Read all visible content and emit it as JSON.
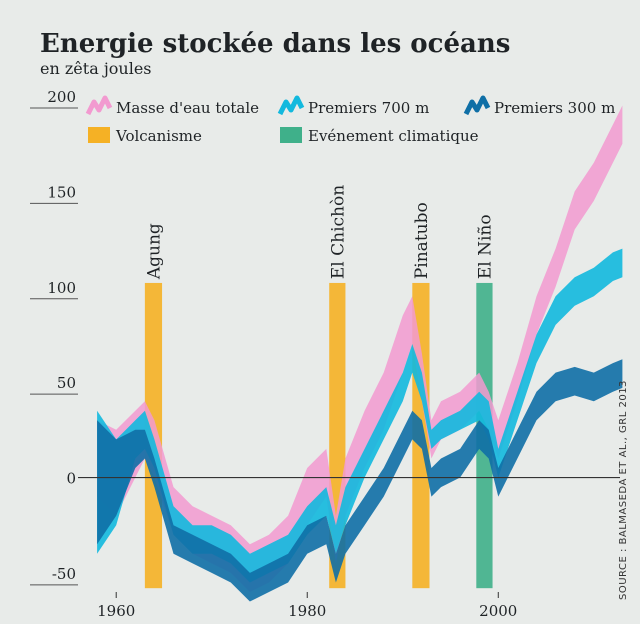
{
  "chart_data": {
    "type": "area",
    "title": "Energie stockée dans les océans",
    "subtitle": "en zêta joules",
    "source": "SOURCE : BALMASEDA ET AL., GRL 2013",
    "xlim": [
      1956,
      2014
    ],
    "ylim": [
      -60,
      200
    ],
    "x_ticks": [
      1960,
      1980,
      2000
    ],
    "y_ticks": [
      -50,
      0,
      50,
      100,
      150,
      200
    ],
    "grid": "horizontal",
    "legend_position": "top",
    "series": [
      {
        "name": "Masse d'eau totale",
        "color": "#f29ad0",
        "x": [
          1958,
          1960,
          1962,
          1963,
          1964,
          1966,
          1968,
          1970,
          1972,
          1974,
          1976,
          1978,
          1980,
          1982,
          1983,
          1984,
          1986,
          1988,
          1990,
          1991,
          1992,
          1993,
          1994,
          1996,
          1998,
          1999,
          2000,
          2002,
          2004,
          2006,
          2008,
          2010,
          2012,
          2013
        ],
        "upper": [
          30,
          25,
          35,
          40,
          30,
          -5,
          -15,
          -20,
          -25,
          -35,
          -30,
          -20,
          5,
          15,
          -20,
          10,
          35,
          55,
          85,
          95,
          65,
          30,
          40,
          45,
          55,
          45,
          30,
          60,
          95,
          120,
          150,
          165,
          185,
          195
        ],
        "lower": [
          -10,
          -20,
          0,
          10,
          0,
          -30,
          -40,
          -45,
          -50,
          -60,
          -55,
          -45,
          -25,
          -10,
          -45,
          -20,
          5,
          25,
          55,
          70,
          40,
          10,
          20,
          25,
          35,
          25,
          10,
          40,
          75,
          100,
          130,
          145,
          165,
          175
        ]
      },
      {
        "name": "Premiers 700 m",
        "color": "#12b9de",
        "x": [
          1958,
          1960,
          1962,
          1963,
          1964,
          1966,
          1968,
          1970,
          1972,
          1974,
          1976,
          1978,
          1980,
          1982,
          1983,
          1984,
          1986,
          1988,
          1990,
          1991,
          1992,
          1993,
          1994,
          1996,
          1998,
          1999,
          2000,
          2002,
          2004,
          2006,
          2008,
          2010,
          2012,
          2013
        ],
        "upper": [
          35,
          20,
          30,
          35,
          20,
          -15,
          -25,
          -25,
          -30,
          -40,
          -35,
          -30,
          -15,
          -5,
          -25,
          -5,
          15,
          35,
          55,
          70,
          55,
          25,
          30,
          35,
          45,
          40,
          15,
          45,
          75,
          95,
          105,
          110,
          118,
          120
        ],
        "lower": [
          -40,
          -25,
          10,
          15,
          5,
          -30,
          -40,
          -40,
          -45,
          -55,
          -50,
          -45,
          -30,
          -20,
          -40,
          -25,
          0,
          20,
          40,
          55,
          40,
          15,
          20,
          25,
          30,
          20,
          0,
          30,
          60,
          80,
          90,
          95,
          103,
          105
        ]
      },
      {
        "name": "Premiers 300 m",
        "color": "#0f6fa6",
        "x": [
          1958,
          1960,
          1962,
          1963,
          1964,
          1966,
          1968,
          1970,
          1972,
          1974,
          1976,
          1978,
          1980,
          1982,
          1983,
          1984,
          1986,
          1988,
          1990,
          1991,
          1992,
          1993,
          1994,
          1996,
          1998,
          1999,
          2000,
          2002,
          2004,
          2006,
          2008,
          2010,
          2012,
          2013
        ],
        "upper": [
          30,
          20,
          25,
          25,
          10,
          -25,
          -30,
          -35,
          -40,
          -50,
          -45,
          -40,
          -25,
          -20,
          -40,
          -25,
          -10,
          5,
          25,
          35,
          30,
          5,
          10,
          15,
          30,
          25,
          5,
          25,
          45,
          55,
          58,
          55,
          60,
          62
        ],
        "lower": [
          -35,
          -20,
          5,
          10,
          -5,
          -40,
          -45,
          -50,
          -55,
          -65,
          -60,
          -55,
          -40,
          -35,
          -55,
          -40,
          -25,
          -10,
          10,
          20,
          15,
          -10,
          -5,
          0,
          15,
          10,
          -10,
          10,
          30,
          40,
          43,
          40,
          45,
          47
        ]
      }
    ],
    "events": [
      {
        "label": "Agung",
        "type": "Volcanisme",
        "x0": 1963.0,
        "x1": 1964.8
      },
      {
        "label": "El Chichòn",
        "type": "Volcanisme",
        "x0": 1982.3,
        "x1": 1984.0
      },
      {
        "label": "Pinatubo",
        "type": "Volcanisme",
        "x0": 1991.0,
        "x1": 1992.8
      },
      {
        "label": "El Niño",
        "type": "Evénement climatique",
        "x0": 1997.7,
        "x1": 1999.4
      }
    ],
    "legend": [
      {
        "label": "Masse d'eau totale",
        "color": "#f29ad0",
        "style": "zigzag"
      },
      {
        "label": "Premiers 700 m",
        "color": "#12b9de",
        "style": "zigzag"
      },
      {
        "label": "Premiers 300 m",
        "color": "#0f6fa6",
        "style": "zigzag"
      },
      {
        "label": "Volcanisme",
        "color": "#f5b125",
        "style": "band"
      },
      {
        "label": "Evénement climatique",
        "color": "#3fb08a",
        "style": "band"
      }
    ]
  }
}
